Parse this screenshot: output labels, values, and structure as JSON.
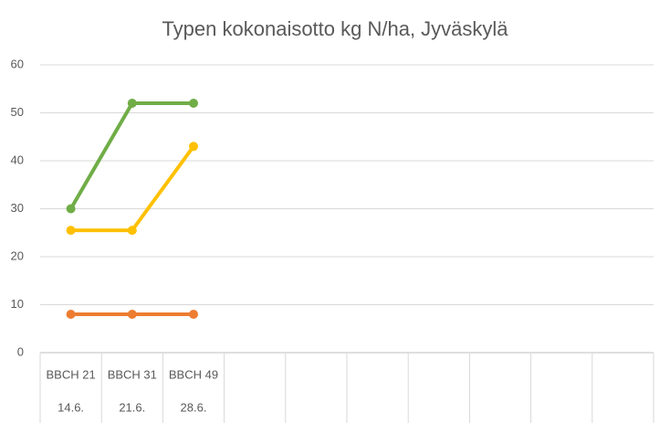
{
  "chart_data": {
    "type": "line",
    "title": "Typen kokonaisotto kg N/ha, Jyväskylä",
    "categories": [
      "BBCH 21",
      "BBCH 31",
      "BBCH 49",
      null,
      null,
      null,
      null,
      null,
      null,
      null
    ],
    "dates": [
      "14.6.",
      "21.6.",
      "28.6.",
      null,
      null,
      null,
      null,
      null,
      null,
      null
    ],
    "series": [
      {
        "color": "#70ad47",
        "values": [
          30,
          52,
          52,
          null,
          null,
          null,
          null,
          null,
          null,
          null
        ]
      },
      {
        "color": "#ffc000",
        "values": [
          25.5,
          25.5,
          43,
          null,
          null,
          null,
          null,
          null,
          null,
          null
        ]
      },
      {
        "color": "#ed7d31",
        "values": [
          8,
          8,
          8,
          null,
          null,
          null,
          null,
          null,
          null,
          null
        ]
      }
    ],
    "ylim": [
      0,
      60
    ],
    "yticks": [
      0,
      10,
      20,
      30,
      40,
      50,
      60
    ],
    "grid": true
  }
}
